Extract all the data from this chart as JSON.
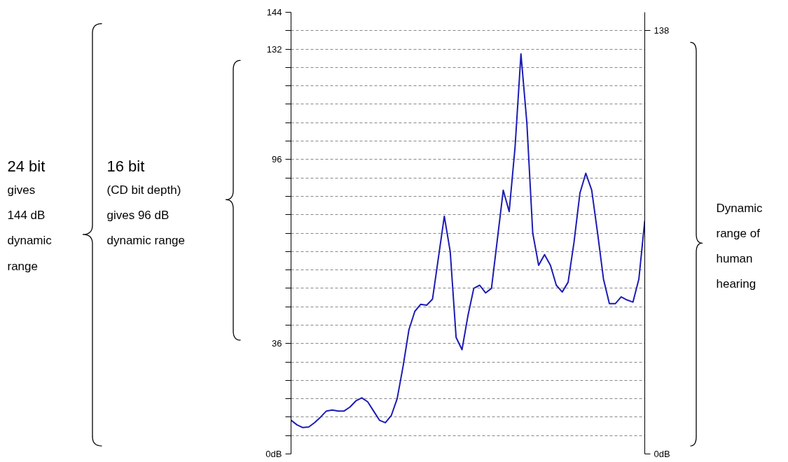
{
  "chart_data": {
    "type": "line",
    "categories": [
      null,
      null,
      null,
      null,
      null,
      null,
      null,
      null,
      null,
      null,
      null,
      null,
      null,
      null,
      null,
      null,
      null,
      null,
      null,
      null,
      null,
      null,
      null,
      null,
      null,
      null,
      null,
      null,
      null,
      null,
      null,
      null,
      null,
      null,
      null,
      null,
      null,
      null,
      null,
      null,
      null,
      null,
      null,
      null,
      null,
      null,
      null,
      null,
      null,
      null,
      null,
      null,
      null,
      null,
      null,
      null,
      null,
      null,
      null,
      null,
      null
    ],
    "series": [
      {
        "color": "#1c1cb4",
        "values": [
          11.0,
          9.5,
          8.6,
          8.8,
          10.2,
          12.0,
          14.0,
          14.3,
          14.0,
          14.0,
          15.3,
          17.3,
          18.3,
          17.0,
          14.0,
          11.0,
          10.2,
          12.5,
          18.0,
          28.5,
          40.5,
          46.5,
          48.8,
          48.5,
          50.5,
          64.0,
          77.5,
          66.0,
          38.0,
          34.0,
          45.0,
          54.0,
          55.0,
          52.5,
          54.0,
          70.0,
          86.0,
          79.0,
          100.0,
          130.4,
          108.0,
          72.0,
          61.5,
          65.0,
          61.5,
          55.0,
          52.8,
          56.0,
          69.0,
          85.0,
          91.5,
          86.0,
          72.0,
          57.0,
          49.0,
          49.0,
          51.2,
          50.2,
          49.5,
          57.0,
          76.0
        ]
      }
    ],
    "ylim": [
      0,
      144
    ],
    "yticks": [
      {
        "value": 0,
        "label": "0dB"
      },
      {
        "value": 6,
        "label": null
      },
      {
        "value": 12,
        "label": null
      },
      {
        "value": 18,
        "label": null
      },
      {
        "value": 24,
        "label": null
      },
      {
        "value": 30,
        "label": null
      },
      36,
      {
        "value": 42,
        "label": null
      },
      {
        "value": 48,
        "label": null
      },
      {
        "value": 54,
        "label": null
      },
      {
        "value": 60,
        "label": null
      },
      {
        "value": 66,
        "label": null
      },
      {
        "value": 72,
        "label": null
      },
      {
        "value": 78,
        "label": null
      },
      {
        "value": 84,
        "label": null
      },
      {
        "value": 90,
        "label": null
      },
      96,
      {
        "value": 102,
        "label": null
      },
      {
        "value": 108,
        "label": null
      },
      {
        "value": 114,
        "label": null
      },
      {
        "value": 120,
        "label": null
      },
      {
        "value": 126,
        "label": null
      },
      132,
      {
        "value": 138,
        "label": null
      },
      144
    ],
    "y2lim": [
      0,
      144
    ],
    "y2ticks": [
      {
        "value": 0,
        "label": "0dB"
      },
      138
    ],
    "grid": "y",
    "tick_labels": "y",
    "annotations": [
      "24 bit",
      "gives\n144 dB\ndynamic\nrange",
      "16 bit",
      "(CD bit depth)\ngives 96 dB\ndynamic range",
      "Dynamic\nrange of\nhuman\nhearing"
    ]
  }
}
